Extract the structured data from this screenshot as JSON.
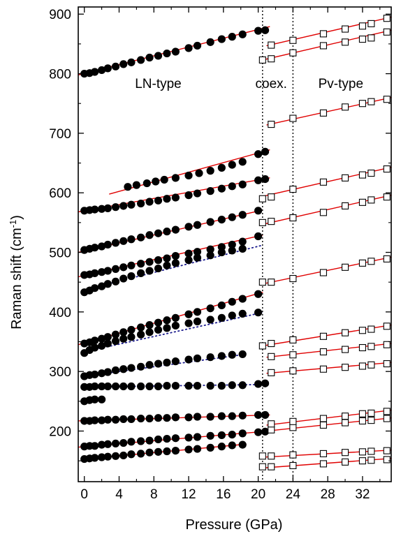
{
  "chart_data": {
    "type": "scatter",
    "title": "",
    "xlabel": "Pressure (GPa)",
    "ylabel": "Raman shift (cm-1)",
    "xlim": [
      -0.7,
      35.3
    ],
    "ylim": [
      115,
      912
    ],
    "xticks": [
      0,
      4,
      8,
      12,
      16,
      20,
      24,
      28,
      32
    ],
    "yticks": [
      200,
      300,
      400,
      500,
      600,
      700,
      800,
      900
    ],
    "grid": false,
    "legend": "none",
    "colors": {
      "ln_marker": "#000000",
      "pv_marker": "#000000",
      "fit_line": "#e00000",
      "dotted_fit": "#1a1a8c",
      "divider": "#000000"
    },
    "annotations": [
      {
        "text": "LN-type",
        "x": 8.5,
        "y": 776
      },
      {
        "text": "coex.",
        "x": 21.5,
        "y": 776
      },
      {
        "text": "Pv-type",
        "x": 29.5,
        "y": 776
      }
    ],
    "phase_boundaries": [
      20.5,
      24.0
    ],
    "series": [
      {
        "phase": "LN-type",
        "marker": "filled-circle",
        "x": [
          0.0,
          0.6,
          1.2,
          2.0,
          2.7,
          3.6,
          4.5,
          5.4,
          6.5,
          7.5,
          8.5,
          9.5,
          10.5,
          12.0,
          13.0,
          14.5,
          15.8,
          17.0,
          18.2,
          20.0,
          20.8
        ],
        "y": [
          153,
          154,
          155,
          156,
          157,
          158,
          159,
          161,
          162,
          164,
          165,
          166,
          167,
          169,
          170,
          172,
          174,
          176,
          177,
          null,
          null
        ]
      },
      {
        "phase": "LN-type",
        "marker": "filled-circle",
        "x": [
          0.0,
          0.6,
          1.2,
          2.0,
          2.7,
          3.6,
          4.5,
          5.4,
          6.5,
          7.5,
          8.5,
          9.5,
          10.5,
          12.0,
          13.0,
          14.5,
          15.8,
          17.0,
          18.2,
          20.0,
          20.8
        ],
        "y": [
          174,
          175,
          175,
          177,
          178,
          179,
          180,
          182,
          183,
          184,
          186,
          187,
          188,
          189,
          190,
          192,
          193,
          194,
          196,
          198,
          199
        ]
      },
      {
        "phase": "LN-type",
        "marker": "filled-circle",
        "x": [
          0.0,
          0.6,
          1.2,
          2.0,
          2.7,
          3.6,
          4.5,
          5.4,
          6.5,
          7.5,
          8.5,
          9.5,
          10.5,
          12.0,
          13.0,
          14.5,
          15.8,
          17.0,
          18.2,
          20.0,
          20.8
        ],
        "y": [
          217,
          217,
          218,
          218,
          219,
          219,
          220,
          220,
          221,
          221,
          222,
          222,
          223,
          223,
          224,
          224,
          225,
          225,
          226,
          227,
          227
        ]
      },
      {
        "phase": "LN-type",
        "marker": "filled-circle",
        "x": [
          0.0,
          0.6,
          1.2,
          2.0
        ],
        "y": [
          250,
          252,
          253,
          253
        ]
      },
      {
        "phase": "LN-type",
        "marker": "filled-circle",
        "x": [
          0.0,
          0.6,
          1.2,
          2.0,
          2.7,
          3.6,
          4.5,
          5.4,
          6.5,
          7.5,
          8.5,
          9.5,
          10.5,
          12.0,
          13.0,
          14.5,
          15.8,
          17.0,
          18.2,
          20.0,
          20.8
        ],
        "y": [
          274,
          274,
          275,
          275,
          275,
          275,
          275,
          275,
          275,
          275,
          275,
          276,
          276,
          276,
          276,
          276,
          276,
          277,
          277,
          279,
          280
        ]
      },
      {
        "phase": "LN-type",
        "marker": "filled-circle",
        "x": [
          0.0,
          0.6,
          1.2,
          2.0,
          2.7,
          3.6,
          4.5,
          5.4,
          6.5,
          7.5,
          8.5,
          9.5,
          10.5,
          12.0,
          13.0,
          14.5,
          15.8,
          17.0,
          18.2
        ],
        "y": [
          292,
          294,
          295,
          297,
          299,
          302,
          304,
          306,
          308,
          311,
          313,
          315,
          317,
          320,
          322,
          324,
          326,
          328,
          329
        ]
      },
      {
        "phase": "LN-type",
        "marker": "filled-circle",
        "x": [
          0.0,
          0.6,
          1.2,
          2.0,
          2.7,
          3.6,
          4.5,
          5.4,
          6.5,
          7.5,
          8.5,
          9.5,
          10.5,
          12.0,
          13.0,
          14.5,
          15.8,
          17.0,
          18.2,
          20.0
        ],
        "y": [
          331,
          336,
          340,
          343,
          347,
          351,
          355,
          358,
          362,
          366,
          370,
          373,
          377,
          381,
          384,
          387,
          390,
          394,
          397,
          399
        ]
      },
      {
        "phase": "LN-type",
        "marker": "filled-circle",
        "x": [
          0.0,
          0.6,
          1.2,
          2.0,
          2.7,
          3.6,
          4.5,
          5.4,
          6.5,
          7.5,
          8.5,
          9.5,
          10.5,
          12.0,
          13.0,
          14.5,
          15.8,
          17.0,
          18.2,
          20.0
        ],
        "y": [
          347,
          349,
          352,
          355,
          358,
          362,
          366,
          370,
          374,
          378,
          382,
          386,
          390,
          396,
          400,
          406,
          411,
          417,
          422,
          430
        ]
      },
      {
        "phase": "LN-type",
        "marker": "filled-circle",
        "x": [
          0.0,
          0.6,
          1.2,
          2.0,
          2.7,
          3.6,
          4.5,
          5.4,
          6.5,
          7.5,
          8.5,
          9.5,
          10.5,
          12.0,
          13.0,
          14.5,
          15.8,
          17.0,
          18.2
        ],
        "y": [
          433,
          436,
          440,
          443,
          447,
          451,
          456,
          460,
          465,
          469,
          473,
          478,
          482,
          487,
          491,
          495,
          500,
          503,
          506
        ]
      },
      {
        "phase": "LN-type",
        "marker": "filled-circle",
        "x": [
          0.0,
          0.6,
          1.2,
          2.0,
          2.7,
          3.6,
          4.5,
          5.4,
          6.5,
          7.5,
          8.5,
          9.5,
          10.5,
          12.0,
          13.0,
          14.5,
          15.8,
          17.0,
          18.2,
          20.0
        ],
        "y": [
          462,
          463,
          465,
          467,
          469,
          472,
          475,
          478,
          481,
          484,
          487,
          490,
          494,
          498,
          501,
          505,
          509,
          513,
          518,
          527
        ]
      },
      {
        "phase": "LN-type",
        "marker": "filled-circle",
        "x": [
          0.0,
          0.6,
          1.2,
          2.0,
          2.7,
          3.6,
          4.5,
          5.4,
          6.5,
          7.5,
          8.5,
          9.5,
          10.5,
          12.0,
          13.0,
          14.5,
          15.8,
          17.0,
          18.2,
          20.0
        ],
        "y": [
          504,
          506,
          508,
          510,
          513,
          516,
          519,
          522,
          525,
          529,
          532,
          535,
          538,
          543,
          546,
          551,
          555,
          559,
          563,
          570
        ]
      },
      {
        "phase": "LN-type",
        "marker": "filled-circle",
        "x": [
          0.0,
          0.6,
          1.2,
          2.0,
          2.7,
          3.6,
          4.5,
          5.4,
          6.5,
          7.5,
          8.5,
          9.5,
          10.5,
          12.0,
          13.0,
          14.5,
          15.8,
          17.0,
          18.2,
          20.0,
          20.8
        ],
        "y": [
          570,
          571,
          572,
          573,
          574,
          576,
          578,
          580,
          582,
          585,
          587,
          590,
          592,
          596,
          599,
          603,
          607,
          611,
          614,
          621,
          623
        ]
      },
      {
        "phase": "LN-type",
        "marker": "filled-circle",
        "x": [
          5.0,
          6.0,
          7.2,
          8.2,
          9.2,
          10.5,
          12.0,
          13.2,
          14.5,
          15.8,
          17.0,
          18.2,
          20.0,
          20.8
        ],
        "y": [
          610,
          613,
          616,
          619,
          622,
          625,
          629,
          633,
          637,
          642,
          647,
          652,
          665,
          669
        ]
      },
      {
        "phase": "LN-type",
        "marker": "filled-circle",
        "x": [
          0.0,
          0.6,
          1.2,
          2.0,
          2.7,
          3.6,
          4.5,
          5.4,
          6.5,
          7.5,
          8.5,
          9.5,
          10.5,
          12.0,
          13.0,
          14.5,
          15.8,
          17.0,
          18.2,
          20.0,
          20.8
        ],
        "y": [
          800,
          801,
          803,
          806,
          809,
          812,
          816,
          819,
          823,
          827,
          830,
          834,
          837,
          843,
          847,
          853,
          858,
          862,
          866,
          872,
          873
        ]
      },
      {
        "phase": "Pv-type",
        "marker": "open-square",
        "x": [
          20.5,
          21.5,
          24.0,
          27.5,
          30.0,
          32.0,
          33.0,
          34.8
        ],
        "y": [
          140,
          140,
          142,
          145,
          148,
          150,
          151,
          152
        ]
      },
      {
        "phase": "Pv-type",
        "marker": "open-square",
        "x": [
          20.5,
          21.5,
          24.0,
          27.5,
          30.0,
          32.0,
          33.0,
          34.8
        ],
        "y": [
          158,
          158,
          160,
          162,
          164,
          165,
          166,
          167
        ]
      },
      {
        "phase": "Pv-type",
        "marker": "open-square",
        "x": [
          21.5,
          24.0,
          27.5,
          30.0,
          32.0,
          33.0,
          34.8
        ],
        "y": [
          202,
          206,
          210,
          214,
          217,
          218,
          221
        ]
      },
      {
        "phase": "Pv-type",
        "marker": "open-square",
        "x": [
          21.5,
          24.0,
          27.5,
          30.0,
          32.0,
          33.0,
          34.8
        ],
        "y": [
          212,
          216,
          221,
          225,
          229,
          230,
          233
        ]
      },
      {
        "phase": "Pv-type",
        "marker": "open-square",
        "x": [
          21.5,
          24.0,
          27.5,
          30.0,
          32.0,
          33.0,
          34.8
        ],
        "y": [
          298,
          301,
          304,
          307,
          309,
          311,
          313
        ]
      },
      {
        "phase": "Pv-type",
        "marker": "open-square",
        "x": [
          21.5,
          24.0,
          27.5,
          30.0,
          32.0,
          33.0,
          34.8
        ],
        "y": [
          325,
          328,
          333,
          337,
          340,
          342,
          345
        ]
      },
      {
        "phase": "Pv-type",
        "marker": "open-square",
        "x": [
          20.5,
          21.5,
          24.0,
          27.5,
          30.0,
          32.0,
          33.0,
          34.8
        ],
        "y": [
          343,
          347,
          353,
          359,
          365,
          369,
          371,
          376
        ]
      },
      {
        "phase": "Pv-type",
        "marker": "open-square",
        "x": [
          20.5,
          21.5,
          24.0,
          27.5,
          30.0,
          32.0,
          33.0,
          34.8
        ],
        "y": [
          450,
          450,
          456,
          466,
          475,
          482,
          485,
          489
        ]
      },
      {
        "phase": "Pv-type",
        "marker": "open-square",
        "x": [
          20.5,
          21.5,
          24.0,
          27.5,
          30.0,
          32.0,
          33.0,
          34.8
        ],
        "y": [
          550,
          552,
          558,
          567,
          578,
          584,
          588,
          593
        ]
      },
      {
        "phase": "Pv-type",
        "marker": "open-square",
        "x": [
          20.5,
          21.5,
          24.0,
          27.5,
          30.0,
          32.0,
          33.0,
          34.8
        ],
        "y": [
          590,
          593,
          606,
          618,
          625,
          630,
          633,
          640
        ]
      },
      {
        "phase": "Pv-type",
        "marker": "open-square",
        "x": [
          21.5,
          24.0,
          27.5,
          30.0,
          32.0,
          33.0,
          34.8
        ],
        "y": [
          715,
          725,
          734,
          744,
          750,
          753,
          757
        ]
      },
      {
        "phase": "Pv-type",
        "marker": "open-square",
        "x": [
          20.5,
          21.5,
          24.0,
          27.5,
          30.0,
          32.0,
          33.0,
          34.8
        ],
        "y": [
          823,
          825,
          835,
          847,
          853,
          858,
          860,
          870
        ]
      },
      {
        "phase": "Pv-type",
        "marker": "open-square",
        "x": [
          21.5,
          24.0,
          27.5,
          30.0,
          32.0,
          33.0,
          34.8
        ],
        "y": [
          848,
          856,
          867,
          875,
          880,
          884,
          893
        ]
      }
    ],
    "fits": [
      {
        "style": "solid",
        "x": [
          0.0,
          18.6
        ],
        "y": [
          153,
          178
        ]
      },
      {
        "style": "solid",
        "x": [
          -0.7,
          21.3
        ],
        "y": [
          173,
          200
        ]
      },
      {
        "style": "solid",
        "x": [
          -0.7,
          21.3
        ],
        "y": [
          217,
          227
        ]
      },
      {
        "style": "dotted",
        "x": [
          0.0,
          20.0
        ],
        "y": [
          274,
          278
        ]
      },
      {
        "style": "dotted",
        "x": [
          0.0,
          18.6
        ],
        "y": [
          292,
          329
        ]
      },
      {
        "style": "dotted",
        "x": [
          0.0,
          20.5
        ],
        "y": [
          333,
          399
        ]
      },
      {
        "style": "solid",
        "x": [
          -0.7,
          20.5
        ],
        "y": [
          345,
          433
        ]
      },
      {
        "style": "dotted",
        "x": [
          0.0,
          20.5
        ],
        "y": [
          437,
          512
        ]
      },
      {
        "style": "solid",
        "x": [
          -0.7,
          20.5
        ],
        "y": [
          459,
          529
        ]
      },
      {
        "style": "solid",
        "x": [
          -0.7,
          20.5
        ],
        "y": [
          500,
          571
        ]
      },
      {
        "style": "solid",
        "x": [
          -0.7,
          21.3
        ],
        "y": [
          568,
          625
        ]
      },
      {
        "style": "solid",
        "x": [
          2.9,
          21.3
        ],
        "y": [
          598,
          672
        ]
      },
      {
        "style": "solid",
        "x": [
          -0.7,
          21.3
        ],
        "y": [
          798,
          879
        ]
      },
      {
        "style": "solid",
        "x": [
          20.5,
          35.3
        ],
        "y": [
          138,
          154
        ]
      },
      {
        "style": "solid",
        "x": [
          20.5,
          35.3
        ],
        "y": [
          156,
          168
        ]
      },
      {
        "style": "solid",
        "x": [
          21.0,
          35.3
        ],
        "y": [
          200,
          222
        ]
      },
      {
        "style": "solid",
        "x": [
          21.0,
          35.3
        ],
        "y": [
          210,
          235
        ]
      },
      {
        "style": "solid",
        "x": [
          21.0,
          35.3
        ],
        "y": [
          297,
          315
        ]
      },
      {
        "style": "solid",
        "x": [
          21.0,
          35.3
        ],
        "y": [
          324,
          347
        ]
      },
      {
        "style": "solid",
        "x": [
          20.5,
          35.3
        ],
        "y": [
          343,
          378
        ]
      },
      {
        "style": "solid",
        "x": [
          20.5,
          35.3
        ],
        "y": [
          447,
          492
        ]
      },
      {
        "style": "solid",
        "x": [
          20.5,
          35.3
        ],
        "y": [
          547,
          596
        ]
      },
      {
        "style": "solid",
        "x": [
          20.5,
          35.3
        ],
        "y": [
          594,
          643
        ]
      },
      {
        "style": "solid",
        "x": [
          21.0,
          35.3
        ],
        "y": [
          714,
          760
        ]
      },
      {
        "style": "solid",
        "x": [
          20.5,
          35.3
        ],
        "y": [
          823,
          873
        ]
      },
      {
        "style": "solid",
        "x": [
          21.0,
          35.3
        ],
        "y": [
          847,
          895
        ]
      }
    ]
  }
}
